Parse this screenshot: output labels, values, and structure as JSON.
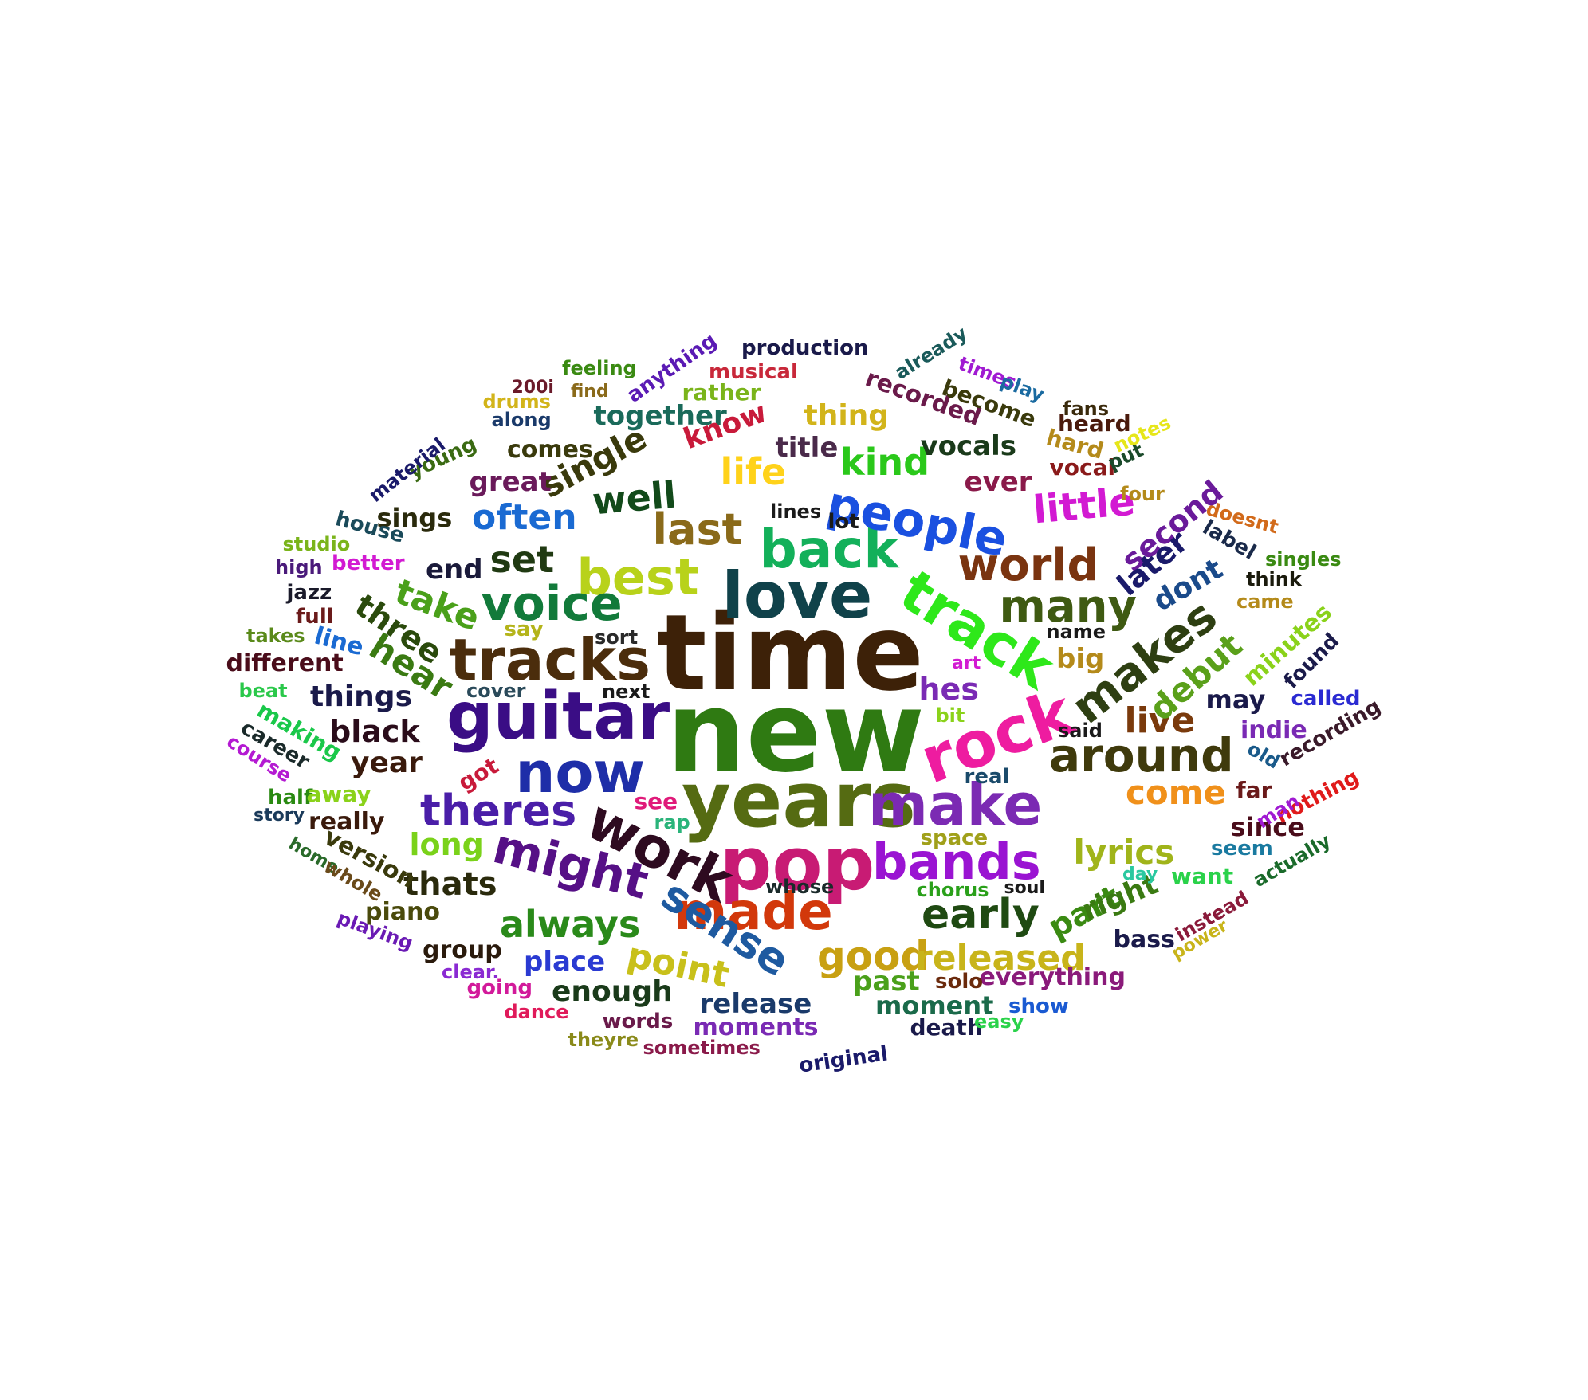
{
  "words": [
    {
      "text": "time",
      "color": "#3d2108"
    },
    {
      "text": "new",
      "color": "#2f7a12"
    },
    {
      "text": "years",
      "color": "#556b12"
    },
    {
      "text": "pop",
      "color": "#c81b74"
    },
    {
      "text": "love",
      "color": "#10424a"
    },
    {
      "text": "guitar",
      "color": "#3a0d85"
    },
    {
      "text": "rock",
      "color": "#ee1ca0"
    },
    {
      "text": "track",
      "color": "#2ee81a"
    },
    {
      "text": "tracks",
      "color": "#4b2d0c"
    },
    {
      "text": "make",
      "color": "#7b2ab3"
    },
    {
      "text": "bands",
      "color": "#9a14d2"
    },
    {
      "text": "work",
      "color": "#2e0b20"
    },
    {
      "text": "now",
      "color": "#1e2ea8"
    },
    {
      "text": "made",
      "color": "#d2380b"
    },
    {
      "text": "back",
      "color": "#13b05a"
    },
    {
      "text": "people",
      "color": "#1a50e0"
    },
    {
      "text": "best",
      "color": "#b8d21a"
    },
    {
      "text": "voice",
      "color": "#127a3a"
    },
    {
      "text": "world",
      "color": "#7a3410"
    },
    {
      "text": "might",
      "color": "#561086"
    },
    {
      "text": "around",
      "color": "#3f3a0c"
    },
    {
      "text": "makes",
      "color": "#2e3f12"
    },
    {
      "text": "many",
      "color": "#3f5a12"
    },
    {
      "text": "sense",
      "color": "#1e5aa0"
    },
    {
      "text": "theres",
      "color": "#4a1ea8"
    },
    {
      "text": "early",
      "color": "#1f4a12"
    },
    {
      "text": "last",
      "color": "#8a6a1a"
    },
    {
      "text": "good",
      "color": "#c8a012"
    },
    {
      "text": "released",
      "color": "#c8b41a"
    },
    {
      "text": "always",
      "color": "#2a8a1a"
    },
    {
      "text": "point",
      "color": "#c8c01a"
    },
    {
      "text": "little",
      "color": "#d21ad2"
    },
    {
      "text": "life",
      "color": "#ffd21a"
    },
    {
      "text": "kind",
      "color": "#2ac81a"
    },
    {
      "text": "well",
      "color": "#124a1a"
    },
    {
      "text": "set",
      "color": "#203a12"
    },
    {
      "text": "often",
      "color": "#1a6ad2"
    },
    {
      "text": "single",
      "color": "#3a3a0c"
    },
    {
      "text": "take",
      "color": "#4aa01a"
    },
    {
      "text": "hear",
      "color": "#3a7a12"
    },
    {
      "text": "three",
      "color": "#2a4a0c"
    },
    {
      "text": "live",
      "color": "#7a3a0c"
    },
    {
      "text": "come",
      "color": "#f0901a"
    },
    {
      "text": "lyrics",
      "color": "#a0b41a"
    },
    {
      "text": "debut",
      "color": "#5aa01a"
    },
    {
      "text": "second",
      "color": "#6a1a9a"
    },
    {
      "text": "later",
      "color": "#1a1a6a"
    },
    {
      "text": "dont",
      "color": "#1a4a8a"
    },
    {
      "text": "part",
      "color": "#3a8a12"
    },
    {
      "text": "right",
      "color": "#3a7a12"
    },
    {
      "text": "black",
      "color": "#2a0c1a"
    },
    {
      "text": "year",
      "color": "#3a1a0c"
    },
    {
      "text": "things",
      "color": "#1a1a4a"
    },
    {
      "text": "thats",
      "color": "#2a2a0c"
    },
    {
      "text": "long",
      "color": "#7ad21a"
    },
    {
      "text": "place",
      "color": "#2a3ad2"
    },
    {
      "text": "enough",
      "color": "#1a3a1a"
    },
    {
      "text": "release",
      "color": "#1a3a6a"
    },
    {
      "text": "moments",
      "color": "#7a2ab4"
    },
    {
      "text": "moment",
      "color": "#1a6a4a"
    },
    {
      "text": "past",
      "color": "#4aa01a"
    },
    {
      "text": "everything",
      "color": "#8a1a7a"
    },
    {
      "text": "title",
      "color": "#4a2a4a"
    },
    {
      "text": "vocals",
      "color": "#1a3a1a"
    },
    {
      "text": "ever",
      "color": "#8a1a4a"
    },
    {
      "text": "thing",
      "color": "#d2b41a"
    },
    {
      "text": "recorded",
      "color": "#6a1a4a"
    },
    {
      "text": "together",
      "color": "#1a6a5a"
    },
    {
      "text": "know",
      "color": "#c81a3a"
    },
    {
      "text": "great",
      "color": "#6a1a5a"
    },
    {
      "text": "comes",
      "color": "#3a3a0c"
    },
    {
      "text": "young",
      "color": "#3a6a12"
    },
    {
      "text": "sings",
      "color": "#2a2a0c"
    },
    {
      "text": "end",
      "color": "#1a1a3a"
    },
    {
      "text": "hes",
      "color": "#7a2ab4"
    },
    {
      "text": "big",
      "color": "#b48a1a"
    },
    {
      "text": "may",
      "color": "#1a1a4a"
    },
    {
      "text": "indie",
      "color": "#7a2ab4"
    },
    {
      "text": "since",
      "color": "#4a0c1a"
    },
    {
      "text": "minutes",
      "color": "#8ad21a"
    },
    {
      "text": "found",
      "color": "#1a1a4a"
    },
    {
      "text": "production",
      "color": "#1a1a4a"
    },
    {
      "text": "musical",
      "color": "#c8283a"
    },
    {
      "text": "rather",
      "color": "#7ab41a"
    },
    {
      "text": "anything",
      "color": "#5a1ab4"
    },
    {
      "text": "feeling",
      "color": "#3a8a12"
    },
    {
      "text": "find",
      "color": "#8a6a1a"
    },
    {
      "text": "200i",
      "color": "#6a1a2a"
    },
    {
      "text": "drums",
      "color": "#d2b41a"
    },
    {
      "text": "along",
      "color": "#1a3a6a"
    },
    {
      "text": "material",
      "color": "#1a1a6a"
    },
    {
      "text": "house",
      "color": "#1a4a5a"
    },
    {
      "text": "studio",
      "color": "#7ab41a"
    },
    {
      "text": "high",
      "color": "#4a1a7a"
    },
    {
      "text": "better",
      "color": "#d21ad2"
    },
    {
      "text": "jazz",
      "color": "#1a1a2a"
    },
    {
      "text": "full",
      "color": "#6a1a1a"
    },
    {
      "text": "takes",
      "color": "#5a8a1a"
    },
    {
      "text": "line",
      "color": "#1a6ad2"
    },
    {
      "text": "different",
      "color": "#4a0c1a"
    },
    {
      "text": "beat",
      "color": "#2ac84a"
    },
    {
      "text": "making",
      "color": "#1ac84a"
    },
    {
      "text": "career",
      "color": "#1a2a2a"
    },
    {
      "text": "course",
      "color": "#b41ad2"
    },
    {
      "text": "half",
      "color": "#2a8a12"
    },
    {
      "text": "away",
      "color": "#8ad21a"
    },
    {
      "text": "story",
      "color": "#1a3a5a"
    },
    {
      "text": "really",
      "color": "#3a1a0c"
    },
    {
      "text": "version",
      "color": "#3a3a0c"
    },
    {
      "text": "home",
      "color": "#2a6a2a"
    },
    {
      "text": "whole",
      "color": "#6a4a1a"
    },
    {
      "text": "piano",
      "color": "#4a4a0c"
    },
    {
      "text": "playing",
      "color": "#6a1ab4"
    },
    {
      "text": "group",
      "color": "#2a1a0c"
    },
    {
      "text": "clear.",
      "color": "#8a2ad2"
    },
    {
      "text": "going",
      "color": "#d21a9a"
    },
    {
      "text": "dance",
      "color": "#e01a5a"
    },
    {
      "text": "theyre",
      "color": "#8a8a1a"
    },
    {
      "text": "words",
      "color": "#6a1a4a"
    },
    {
      "text": "sometimes",
      "color": "#8a1a4a"
    },
    {
      "text": "original",
      "color": "#1a1a6a"
    },
    {
      "text": "death",
      "color": "#1a1a4a"
    },
    {
      "text": "easy",
      "color": "#2ad24a"
    },
    {
      "text": "show",
      "color": "#1a5ad2"
    },
    {
      "text": "solo",
      "color": "#6a2a0c"
    },
    {
      "text": "say",
      "color": "#b4b41a"
    },
    {
      "text": "sort",
      "color": "#2a2a2a"
    },
    {
      "text": "cover",
      "color": "#2a4a5a"
    },
    {
      "text": "next",
      "color": "#1a1a1a"
    },
    {
      "text": "got",
      "color": "#c81a3a"
    },
    {
      "text": "see",
      "color": "#e01a7a"
    },
    {
      "text": "rap",
      "color": "#2ab47a"
    },
    {
      "text": "whose",
      "color": "#1a2a2a"
    },
    {
      "text": "space",
      "color": "#a0a01a"
    },
    {
      "text": "chorus",
      "color": "#2aa01a"
    },
    {
      "text": "soul",
      "color": "#1a1a1a"
    },
    {
      "text": "real",
      "color": "#1a4a6a"
    },
    {
      "text": "said",
      "color": "#1a1a1a"
    },
    {
      "text": "bit",
      "color": "#8ad21a"
    },
    {
      "text": "art",
      "color": "#d21ad2"
    },
    {
      "text": "name",
      "color": "#1a1a1a"
    },
    {
      "text": "lines",
      "color": "#1a1a1a"
    },
    {
      "text": "lot",
      "color": "#1a1a1a"
    },
    {
      "text": "already",
      "color": "#1a5a5a"
    },
    {
      "text": "times",
      "color": "#a01ad2"
    },
    {
      "text": "play",
      "color": "#1a6aa0"
    },
    {
      "text": "become",
      "color": "#3a3a0c"
    },
    {
      "text": "fans",
      "color": "#3a2a0c"
    },
    {
      "text": "heard",
      "color": "#4a1a0c"
    },
    {
      "text": "hard",
      "color": "#b48a1a"
    },
    {
      "text": "vocal",
      "color": "#8a1a1a"
    },
    {
      "text": "put",
      "color": "#1a4a2a"
    },
    {
      "text": "notes",
      "color": "#e6e61a"
    },
    {
      "text": "four",
      "color": "#b48a1a"
    },
    {
      "text": "doesnt",
      "color": "#d26a1a"
    },
    {
      "text": "label",
      "color": "#1a2a4a"
    },
    {
      "text": "think",
      "color": "#1a1a0c"
    },
    {
      "text": "singles",
      "color": "#3a8a12"
    },
    {
      "text": "came",
      "color": "#b48a1a"
    },
    {
      "text": "called",
      "color": "#2a2ad2"
    },
    {
      "text": "old",
      "color": "#1a5a8a"
    },
    {
      "text": "recording",
      "color": "#3a1a2a"
    },
    {
      "text": "nothing",
      "color": "#e01a1a"
    },
    {
      "text": "far",
      "color": "#6a1a1a"
    },
    {
      "text": "man",
      "color": "#a01ad2"
    },
    {
      "text": "seem",
      "color": "#1a7aa0"
    },
    {
      "text": "actually",
      "color": "#1a6a2a"
    },
    {
      "text": "want",
      "color": "#2ad24a"
    },
    {
      "text": "day",
      "color": "#2ac8a0"
    },
    {
      "text": "bass",
      "color": "#1a1a4a"
    },
    {
      "text": "instead",
      "color": "#8a1a3a"
    },
    {
      "text": "power",
      "color": "#c8b41a"
    }
  ]
}
